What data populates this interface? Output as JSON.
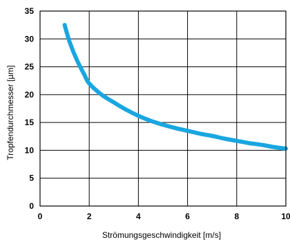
{
  "chart_data": {
    "type": "line",
    "title": "",
    "xlabel": "Strömungsgeschwindigkeit [m/s]",
    "ylabel": "Tropfendurchmesser [µm]",
    "xlim": [
      0,
      10
    ],
    "ylim": [
      0,
      35
    ],
    "x_ticks": [
      0,
      2,
      4,
      6,
      8,
      10
    ],
    "y_ticks": [
      0,
      5,
      10,
      15,
      20,
      25,
      30,
      35
    ],
    "grid": true,
    "legend": "none",
    "series": [
      {
        "color": "#1aa6e0",
        "x": [
          1.0,
          1.2,
          1.5,
          1.8,
          2.0,
          2.5,
          3.0,
          3.5,
          4.0,
          4.5,
          5.0,
          5.5,
          6.0,
          6.5,
          7.0,
          7.5,
          8.0,
          8.5,
          9.0,
          9.5,
          10.0
        ],
        "y": [
          32.5,
          29.5,
          26.2,
          23.6,
          22.0,
          20.0,
          18.6,
          17.3,
          16.2,
          15.3,
          14.6,
          14.0,
          13.5,
          13.0,
          12.6,
          12.1,
          11.7,
          11.3,
          11.0,
          10.6,
          10.3
        ]
      }
    ]
  }
}
